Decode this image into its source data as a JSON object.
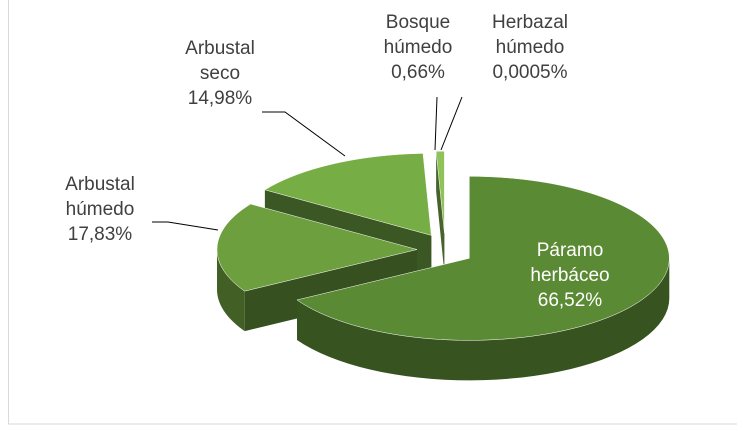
{
  "chart_data": {
    "type": "pie3d",
    "categories": [
      "Páramo herbáceo",
      "Arbustal húmedo",
      "Arbustal seco",
      "Bosque húmedo",
      "Herbazal húmedo"
    ],
    "values": [
      66.52,
      17.83,
      14.98,
      0.66,
      0.0005
    ],
    "value_labels": [
      "66,52%",
      "17,83%",
      "14,98%",
      "0,66%",
      "0,0005%"
    ],
    "colors": [
      "#5b8a34",
      "#6e9f3f",
      "#76ae45",
      "#8fc35a",
      "#a9d18e"
    ]
  }
}
